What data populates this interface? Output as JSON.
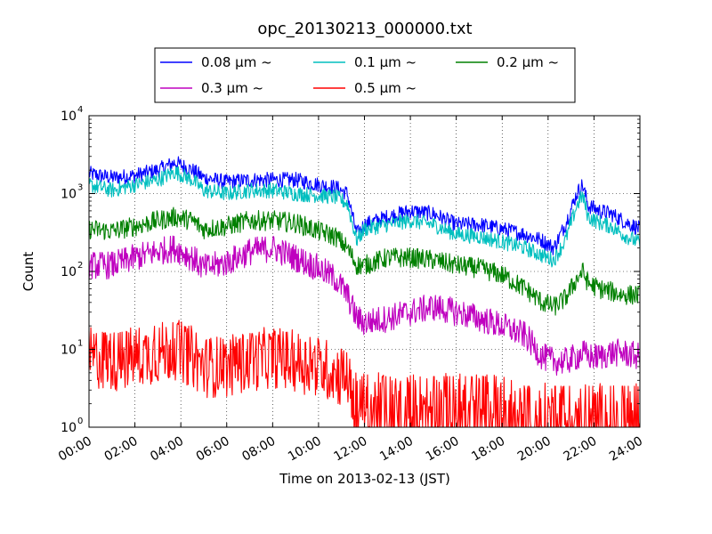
{
  "chart_data": {
    "type": "line",
    "title": "opc_20130213_000000.txt",
    "xlabel": "Time on 2013-02-13 (JST)",
    "ylabel": "Count",
    "yscale": "log",
    "ylim": [
      1,
      10000
    ],
    "y_ticks": [
      {
        "value": 1,
        "base": "10",
        "exp": "0"
      },
      {
        "value": 10,
        "base": "10",
        "exp": "1"
      },
      {
        "value": 100,
        "base": "10",
        "exp": "2"
      },
      {
        "value": 1000,
        "base": "10",
        "exp": "3"
      },
      {
        "value": 10000,
        "base": "10",
        "exp": "4"
      }
    ],
    "x_ticks": [
      "00:00",
      "02:00",
      "04:00",
      "06:00",
      "08:00",
      "10:00",
      "12:00",
      "14:00",
      "16:00",
      "18:00",
      "20:00",
      "22:00",
      "24:00"
    ],
    "grid": true,
    "legend_position": "top-center",
    "series": [
      {
        "name": "0.08 μm ~",
        "color": "#0000ff",
        "x": [
          "00:00",
          "01:00",
          "02:00",
          "03:00",
          "03:45",
          "04:30",
          "05:00",
          "06:00",
          "07:00",
          "08:00",
          "09:00",
          "10:00",
          "10:45",
          "11:15",
          "11:40",
          "12:00",
          "13:00",
          "14:00",
          "15:00",
          "16:00",
          "17:00",
          "18:00",
          "19:00",
          "19:45",
          "20:15",
          "20:45",
          "21:15",
          "21:30",
          "21:45",
          "22:15",
          "22:45",
          "23:15",
          "24:00"
        ],
        "values": [
          1800,
          1600,
          1700,
          2000,
          2500,
          2000,
          1600,
          1400,
          1500,
          1500,
          1500,
          1300,
          1200,
          1000,
          300,
          400,
          500,
          600,
          550,
          400,
          400,
          350,
          300,
          250,
          200,
          400,
          1000,
          1300,
          700,
          600,
          550,
          450,
          350
        ]
      },
      {
        "name": "0.1 μm ~",
        "color": "#00bfbf",
        "x": [
          "00:00",
          "01:00",
          "02:00",
          "03:00",
          "03:45",
          "04:30",
          "05:00",
          "06:00",
          "07:00",
          "08:00",
          "09:00",
          "10:00",
          "10:45",
          "11:15",
          "11:40",
          "12:00",
          "13:00",
          "14:00",
          "15:00",
          "16:00",
          "17:00",
          "18:00",
          "19:00",
          "19:45",
          "20:15",
          "20:45",
          "21:15",
          "21:30",
          "21:45",
          "22:15",
          "22:45",
          "23:15",
          "24:00"
        ],
        "values": [
          1300,
          1100,
          1300,
          1500,
          1900,
          1500,
          1100,
          1000,
          1100,
          1100,
          1000,
          950,
          900,
          750,
          250,
          350,
          400,
          450,
          400,
          300,
          280,
          240,
          200,
          160,
          140,
          250,
          700,
          950,
          500,
          420,
          380,
          300,
          230
        ]
      },
      {
        "name": "0.2 μm ~",
        "color": "#008000",
        "x": [
          "00:00",
          "01:00",
          "02:00",
          "03:00",
          "03:45",
          "04:30",
          "05:00",
          "06:00",
          "07:00",
          "08:00",
          "09:00",
          "10:00",
          "10:45",
          "11:15",
          "11:40",
          "12:00",
          "13:00",
          "14:00",
          "15:00",
          "16:00",
          "17:00",
          "18:00",
          "19:00",
          "19:45",
          "20:15",
          "20:45",
          "21:15",
          "21:30",
          "21:45",
          "22:15",
          "22:45",
          "23:15",
          "24:00"
        ],
        "values": [
          350,
          330,
          380,
          450,
          500,
          450,
          350,
          380,
          450,
          450,
          420,
          330,
          280,
          200,
          120,
          120,
          150,
          150,
          140,
          120,
          110,
          90,
          60,
          40,
          35,
          45,
          80,
          100,
          70,
          60,
          55,
          50,
          50
        ]
      },
      {
        "name": "0.3 μm ~",
        "color": "#bf00bf",
        "x": [
          "00:00",
          "01:00",
          "02:00",
          "03:00",
          "03:45",
          "04:30",
          "05:00",
          "06:00",
          "07:00",
          "08:00",
          "09:00",
          "10:00",
          "10:45",
          "11:15",
          "11:40",
          "12:00",
          "13:00",
          "14:00",
          "15:00",
          "16:00",
          "17:00",
          "18:00",
          "19:00",
          "19:45",
          "20:15",
          "20:45",
          "21:15",
          "21:30",
          "21:45",
          "22:15",
          "22:45",
          "23:15",
          "24:00"
        ],
        "values": [
          120,
          120,
          150,
          180,
          200,
          150,
          110,
          130,
          180,
          200,
          150,
          110,
          80,
          50,
          25,
          22,
          25,
          30,
          35,
          30,
          25,
          20,
          15,
          8,
          7,
          7,
          8,
          9,
          8,
          8,
          9,
          9,
          8
        ]
      },
      {
        "name": "0.5 μm ~",
        "color": "#ff0000",
        "x": [
          "00:00",
          "01:00",
          "02:00",
          "03:00",
          "03:45",
          "04:30",
          "05:00",
          "06:00",
          "07:00",
          "08:00",
          "09:00",
          "10:00",
          "10:45",
          "11:15",
          "11:40",
          "12:00",
          "13:00",
          "14:00",
          "15:00",
          "16:00",
          "17:00",
          "18:00",
          "19:00",
          "19:45",
          "20:15",
          "20:45",
          "21:15",
          "21:30",
          "21:45",
          "22:15",
          "22:45",
          "23:15",
          "24:00"
        ],
        "values": [
          8,
          7,
          8,
          9,
          10,
          8,
          6,
          6,
          7,
          8,
          7,
          6,
          5,
          4,
          2,
          2,
          2,
          2,
          2,
          2,
          2,
          2,
          1.5,
          1.5,
          1.5,
          1.5,
          1.5,
          1.5,
          1.5,
          1.5,
          1.5,
          1.5,
          1.5
        ]
      }
    ]
  }
}
